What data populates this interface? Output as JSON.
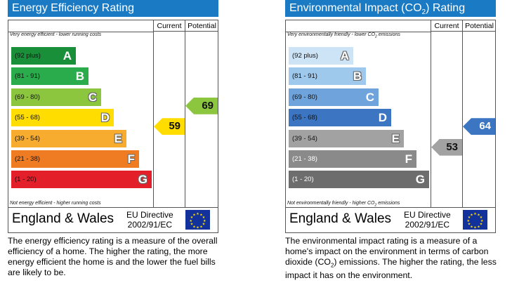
{
  "energy": {
    "title": "Energy Efficiency Rating",
    "col_current": "Current",
    "col_potential": "Potential",
    "scale_top": "Very energy efficient - lower running costs",
    "scale_bottom": "Not energy efficient - higher running costs",
    "bands": [
      {
        "range": "(92 plus)",
        "letter": "A",
        "color": "#1a8f3a"
      },
      {
        "range": "(81 - 91)",
        "letter": "B",
        "color": "#2aab4c"
      },
      {
        "range": "(69 - 80)",
        "letter": "C",
        "color": "#8cc63f"
      },
      {
        "range": "(55 - 68)",
        "letter": "D",
        "color": "#ffdd00"
      },
      {
        "range": "(39 - 54)",
        "letter": "E",
        "color": "#f7ac2f"
      },
      {
        "range": "(21 - 38)",
        "letter": "F",
        "color": "#ef7c22"
      },
      {
        "range": "(1 - 20)",
        "letter": "G",
        "color": "#e3202a"
      }
    ],
    "current": {
      "value": "59",
      "band": "D",
      "color": "#ffdd00"
    },
    "potential": {
      "value": "69",
      "band": "C",
      "color": "#8cc63f"
    },
    "footer_region": "England & Wales",
    "directive_line1": "EU Directive",
    "directive_line2": "2002/91/EC",
    "description": "The energy efficiency rating is a measure of the overall efficiency of a home. The higher the rating, the more energy efficient the home is and the lower the fuel bills are likely to be."
  },
  "environment": {
    "title_prefix": "Environmental Impact (CO",
    "title_sub": "2",
    "title_suffix": ") Rating",
    "col_current": "Current",
    "col_potential": "Potential",
    "scale_top_prefix": "Very environmentally friendly - lower CO",
    "scale_top_sub": "2",
    "scale_top_suffix": " emissions",
    "scale_bottom_prefix": "Not environmentally friendly - higher CO",
    "scale_bottom_sub": "2",
    "scale_bottom_suffix": " emissions",
    "bands": [
      {
        "range": "(92 plus)",
        "letter": "A",
        "color": "#cde3f6"
      },
      {
        "range": "(81 - 91)",
        "letter": "B",
        "color": "#9ec8ec"
      },
      {
        "range": "(69 - 80)",
        "letter": "C",
        "color": "#6fa3dc"
      },
      {
        "range": "(55 - 68)",
        "letter": "D",
        "color": "#3c76c2"
      },
      {
        "range": "(39 - 54)",
        "letter": "E",
        "color": "#a2a2a2"
      },
      {
        "range": "(21 - 38)",
        "letter": "F",
        "color": "#8a8a8a"
      },
      {
        "range": "(1 - 20)",
        "letter": "G",
        "color": "#6d6d6d"
      }
    ],
    "current": {
      "value": "53",
      "band": "E",
      "color": "#a2a2a2"
    },
    "potential": {
      "value": "64",
      "band": "D",
      "color": "#3c76c2"
    },
    "footer_region": "England & Wales",
    "directive_line1": "EU Directive",
    "directive_line2": "2002/91/EC",
    "description_part1": "The environmental impact rating is a measure of a home's impact on the environment in terms of carbon dioxide (CO",
    "description_sub": "2",
    "description_part2": ") emissions. The higher the rating, the less impact it has on the environment."
  }
}
